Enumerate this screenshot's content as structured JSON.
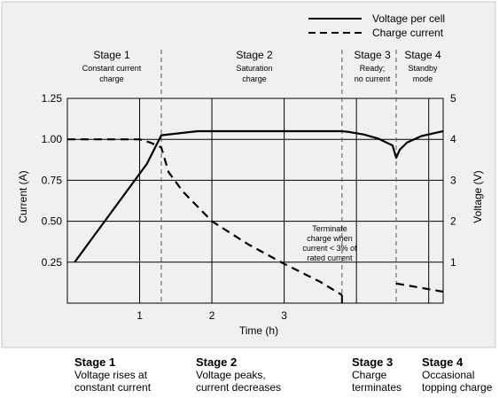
{
  "legend": {
    "voltage_label": "Voltage per cell",
    "current_label": "Charge current"
  },
  "stages": [
    {
      "title": "Stage 1",
      "lines": [
        "Constant current",
        "charge"
      ]
    },
    {
      "title": "Stage 2",
      "lines": [
        "Saturation",
        "charge"
      ]
    },
    {
      "title": "Stage 3",
      "lines": [
        "Ready;",
        "no current"
      ]
    },
    {
      "title": "Stage 4",
      "lines": [
        "Standby",
        "mode"
      ]
    }
  ],
  "annotation": {
    "lines": [
      "Terminate",
      "charge when",
      "current < 3% of",
      "rated current"
    ]
  },
  "captions": [
    {
      "head": "Stage 1",
      "lines": [
        "Voltage rises at",
        "constant current"
      ]
    },
    {
      "head": "Stage 2",
      "lines": [
        "Voltage peaks,",
        "current decreases"
      ]
    },
    {
      "head": "Stage 3",
      "lines": [
        "Charge",
        "terminates"
      ]
    },
    {
      "head": "Stage 4",
      "lines": [
        "Occasional",
        "topping charge"
      ]
    }
  ],
  "chart_data": {
    "type": "line",
    "xlabel": "Time (h)",
    "ylabel_left": "Current (A)",
    "ylabel_right": "Voltage (V)",
    "xlim": [
      0,
      5.2
    ],
    "ylim_left": [
      0,
      1.25
    ],
    "ylim_right": [
      0,
      5
    ],
    "x_ticks": [
      1,
      2,
      3
    ],
    "y_ticks_left": [
      "0.25",
      "0.50",
      "0.75",
      "1.00",
      "1.25"
    ],
    "y_ticks_left_values": [
      0.25,
      0.5,
      0.75,
      1.0,
      1.25
    ],
    "y_ticks_right": [
      "1",
      "2",
      "3",
      "4",
      "5"
    ],
    "y_ticks_right_values": [
      1,
      2,
      3,
      4,
      5
    ],
    "grid": true,
    "legend_position": "top-right",
    "stage_boundaries": [
      1.3,
      3.8,
      4.55
    ],
    "series": [
      {
        "name": "Voltage per cell",
        "axis": "right",
        "style": "solid",
        "x": [
          0.1,
          0.35,
          0.6,
          0.85,
          1.1,
          1.3,
          1.8,
          2.5,
          3.2,
          3.7,
          3.8,
          3.9,
          4.1,
          4.3,
          4.5,
          4.55,
          4.6,
          4.7,
          4.9,
          5.1,
          5.2
        ],
        "y": [
          1.0,
          1.6,
          2.2,
          2.8,
          3.4,
          4.1,
          4.2,
          4.2,
          4.2,
          4.2,
          4.2,
          4.18,
          4.12,
          4.02,
          3.85,
          3.55,
          3.75,
          3.92,
          4.08,
          4.16,
          4.2
        ]
      },
      {
        "name": "Charge current",
        "axis": "left",
        "style": "dashed",
        "x": [
          0,
          0.5,
          1.0,
          1.15,
          1.3,
          1.4,
          1.6,
          2.0,
          2.5,
          3.0,
          3.5,
          3.8,
          4.55,
          5.2
        ],
        "y": [
          1.0,
          1.0,
          1.0,
          0.98,
          0.95,
          0.8,
          0.68,
          0.5,
          0.36,
          0.24,
          0.13,
          0.05,
          0.12,
          0.07
        ]
      }
    ]
  }
}
